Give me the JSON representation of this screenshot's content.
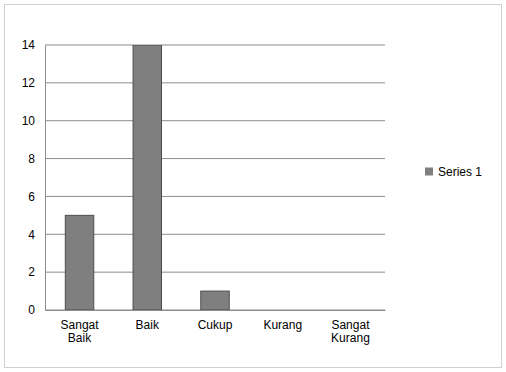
{
  "chart_data": {
    "type": "bar",
    "categories": [
      "Sangat Baik",
      "Baik",
      "Cukup",
      "Kurang",
      "Sangat Kurang"
    ],
    "series": [
      {
        "name": "Series 1",
        "color": "#7f7f7f",
        "values": [
          5,
          14,
          1,
          0,
          0
        ]
      }
    ],
    "ylim": [
      0,
      14
    ],
    "yticks": [
      0,
      2,
      4,
      6,
      8,
      10,
      12,
      14
    ],
    "grid": true,
    "legend": "right"
  }
}
